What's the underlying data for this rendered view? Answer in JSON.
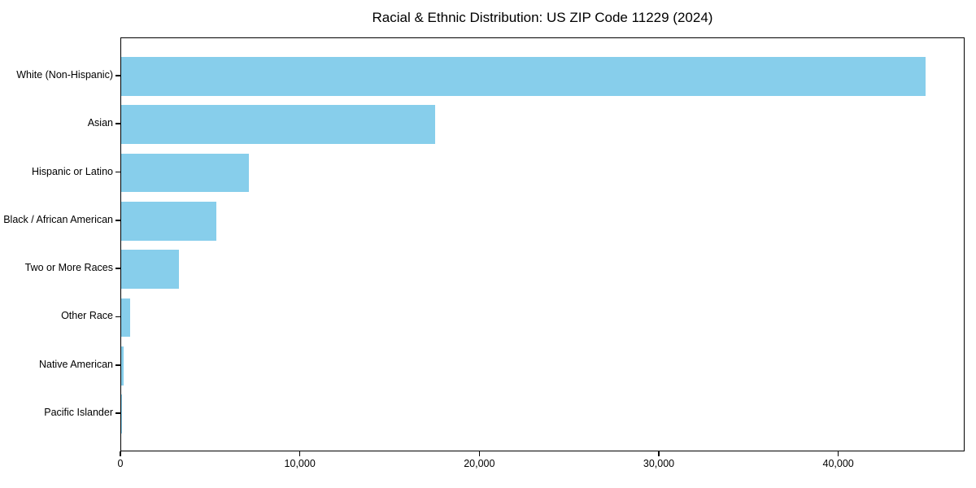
{
  "chart_data": {
    "type": "bar",
    "orientation": "horizontal",
    "title": "Racial & Ethnic Distribution: US ZIP Code 11229 (2024)",
    "categories": [
      "White (Non-Hispanic)",
      "Asian",
      "Hispanic or Latino",
      "Black / African American",
      "Two or More Races",
      "Other Race",
      "Native American",
      "Pacific Islander"
    ],
    "values": [
      44800,
      17500,
      7100,
      5300,
      3200,
      500,
      130,
      30
    ],
    "xlabel": "",
    "ylabel": "",
    "xlim": [
      0,
      47040
    ],
    "xticks": [
      0,
      10000,
      20000,
      30000,
      40000
    ],
    "xtick_labels": [
      "0",
      "10,000",
      "20,000",
      "30,000",
      "40,000"
    ],
    "bar_color": "#87CEEB",
    "background_color": "#ffffff",
    "grid": false,
    "legend": null
  }
}
